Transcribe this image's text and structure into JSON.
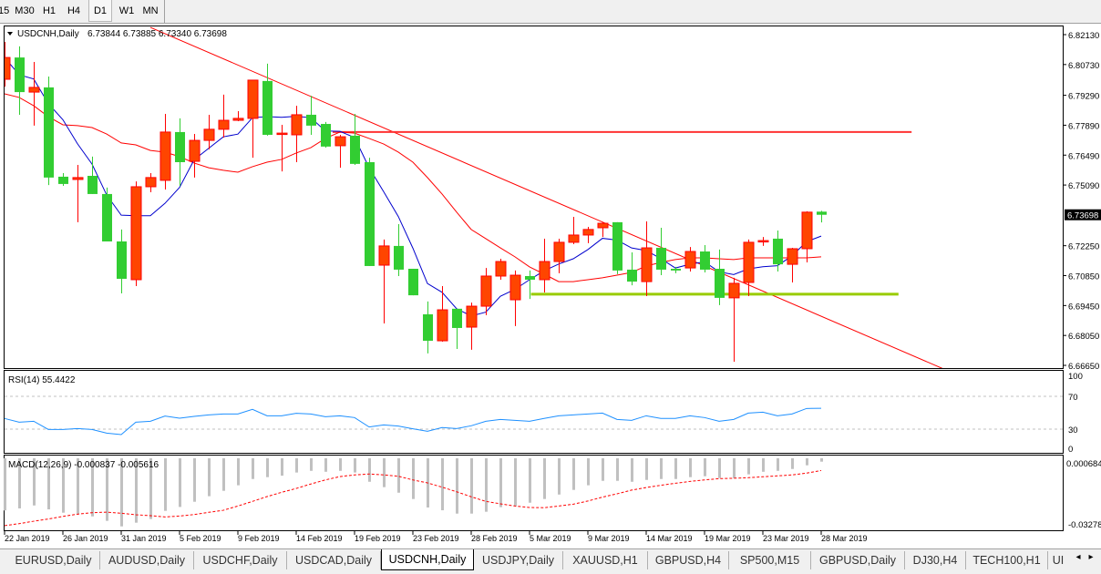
{
  "toolbar": {
    "timeframes": [
      {
        "label": "15",
        "active": false
      },
      {
        "label": "M30",
        "active": false
      },
      {
        "label": "H1",
        "active": false
      },
      {
        "label": "H4",
        "active": false
      },
      {
        "label": "D1",
        "active": true
      },
      {
        "label": "W1",
        "active": false
      },
      {
        "label": "MN",
        "active": false
      }
    ]
  },
  "header": {
    "symbol": "USDCNH,Daily",
    "ohlc": "6.73844 6.73885 6.73340 6.73698"
  },
  "colors": {
    "up_candle": "#ff4500",
    "up_border": "#ff0000",
    "down_candle": "#32cd32",
    "fast_ma": "#0000cd",
    "slow_ma": "#ff0000",
    "trendline": "#ff0000",
    "resistance": "#ff3333",
    "support": "#99cc00",
    "rsi": "#1e90ff",
    "macd_hist": "#c0c0c0",
    "macd_signal": "#ff0000",
    "price_tag_bg": "#000000"
  },
  "chart_data": [
    {
      "type": "candlestick",
      "title": "USDCNH,Daily",
      "price_axis_ticks": [
        "6.82130",
        "6.80730",
        "6.79290",
        "6.77890",
        "6.76490",
        "6.75090",
        "6.72250",
        "6.70850",
        "6.69450",
        "6.68050",
        "6.66650"
      ],
      "current_price": "6.73698",
      "ylim": [
        6.6665,
        6.8213
      ],
      "date_labels": [
        {
          "bar": 0,
          "label": "22 Jan 2019"
        },
        {
          "bar": 4,
          "label": "26 Jan 2019"
        },
        {
          "bar": 8,
          "label": "31 Jan 2019"
        },
        {
          "bar": 12,
          "label": "5 Feb 2019"
        },
        {
          "bar": 16,
          "label": "9 Feb 2019"
        },
        {
          "bar": 20,
          "label": "14 Feb 2019"
        },
        {
          "bar": 24,
          "label": "19 Feb 2019"
        },
        {
          "bar": 28,
          "label": "23 Feb 2019"
        },
        {
          "bar": 32,
          "label": "28 Feb 2019"
        },
        {
          "bar": 36,
          "label": "5 Mar 2019"
        },
        {
          "bar": 40,
          "label": "9 Mar 2019"
        },
        {
          "bar": 44,
          "label": "14 Mar 2019"
        },
        {
          "bar": 48,
          "label": "19 Mar 2019"
        },
        {
          "bar": 52,
          "label": "23 Mar 2019"
        },
        {
          "bar": 56,
          "label": "28 Mar 2019"
        }
      ],
      "ohlc": [
        [
          6.8004,
          6.8179,
          6.797,
          6.8106
        ],
        [
          6.8106,
          6.8158,
          6.7838,
          6.7944
        ],
        [
          6.7944,
          6.8085,
          6.7787,
          6.7966
        ],
        [
          6.7966,
          6.8017,
          6.7509,
          6.7544
        ],
        [
          6.7548,
          6.7565,
          6.7505,
          6.7514
        ],
        [
          6.7535,
          6.7603,
          6.7335,
          6.7544
        ],
        [
          6.7552,
          6.7642,
          6.7467,
          6.7467
        ],
        [
          6.7467,
          6.7497,
          6.7245,
          6.7245
        ],
        [
          6.7245,
          6.7301,
          6.7002,
          6.707
        ],
        [
          6.7066,
          6.7526,
          6.7036,
          6.7501
        ],
        [
          6.7501,
          6.7565,
          6.7475,
          6.7544
        ],
        [
          6.7531,
          6.7842,
          6.7488,
          6.7757
        ],
        [
          6.7757,
          6.7821,
          6.7505,
          6.7616
        ],
        [
          6.762,
          6.7748,
          6.7544,
          6.7718
        ],
        [
          6.7718,
          6.7838,
          6.7676,
          6.777
        ],
        [
          6.777,
          6.7932,
          6.7731,
          6.7812
        ],
        [
          6.7812,
          6.7855,
          6.7808,
          6.7821
        ],
        [
          6.7821,
          6.8,
          6.7637,
          6.8
        ],
        [
          6.7996,
          6.8077,
          6.774,
          6.7744
        ],
        [
          6.7748,
          6.7791,
          6.7573,
          6.7752
        ],
        [
          6.7744,
          6.788,
          6.7616,
          6.7838
        ],
        [
          6.7838,
          6.7927,
          6.7744,
          6.7787
        ],
        [
          6.7795,
          6.7804,
          6.7684,
          6.7689
        ],
        [
          6.7693,
          6.7744,
          6.759,
          6.7735
        ],
        [
          6.774,
          6.7842,
          6.7603,
          6.7608
        ],
        [
          6.7616,
          6.7637,
          6.713,
          6.713
        ],
        [
          6.7134,
          6.7254,
          6.6861,
          6.7224
        ],
        [
          6.7224,
          6.7326,
          6.7083,
          6.7113
        ],
        [
          6.7117,
          6.7117,
          6.6993,
          6.6993
        ],
        [
          6.6904,
          6.6964,
          6.6721,
          6.678
        ],
        [
          6.678,
          6.7036,
          6.6776,
          6.6925
        ],
        [
          6.693,
          6.693,
          6.6742,
          6.684
        ],
        [
          6.6844,
          6.6959,
          6.6738,
          6.6942
        ],
        [
          6.6942,
          6.7121,
          6.69,
          6.7083
        ],
        [
          6.7083,
          6.7164,
          6.7066,
          6.7151
        ],
        [
          6.6972,
          6.7109,
          6.6849,
          6.7087
        ],
        [
          6.7083,
          6.7109,
          6.6976,
          6.7066
        ],
        [
          6.7066,
          6.7258,
          6.7006,
          6.7151
        ],
        [
          6.7151,
          6.7258,
          6.7096,
          6.7241
        ],
        [
          6.7241,
          6.736,
          6.7232,
          6.7275
        ],
        [
          6.7275,
          6.7313,
          6.7237,
          6.7301
        ],
        [
          6.7309,
          6.7335,
          6.7266,
          6.733
        ],
        [
          6.7335,
          6.7335,
          6.7092,
          6.7109
        ],
        [
          6.7113,
          6.7194,
          6.704,
          6.7057
        ],
        [
          6.7057,
          6.7339,
          6.6989,
          6.7215
        ],
        [
          6.7215,
          6.7309,
          6.7087,
          6.7113
        ],
        [
          6.7117,
          6.7126,
          6.7096,
          6.7109
        ],
        [
          6.7121,
          6.7219,
          6.7104,
          6.7198
        ],
        [
          6.7198,
          6.7228,
          6.71,
          6.7113
        ],
        [
          6.7117,
          6.7207,
          6.6947,
          6.6981
        ],
        [
          6.6981,
          6.7075,
          6.6682,
          6.7049
        ],
        [
          6.7053,
          6.7254,
          6.6989,
          6.7241
        ],
        [
          6.7245,
          6.7266,
          6.7224,
          6.7249
        ],
        [
          6.7258,
          6.7296,
          6.7104,
          6.7138
        ],
        [
          6.7138,
          6.7215,
          6.7053,
          6.7211
        ],
        [
          6.7211,
          6.7386,
          6.7147,
          6.7382
        ],
        [
          6.73844,
          6.73885,
          6.7334,
          6.73698
        ]
      ],
      "slow_ma": [
        6.7936,
        6.7919,
        6.788,
        6.7829,
        6.7791,
        6.7787,
        6.7778,
        6.7748,
        6.7706,
        6.7697,
        6.7671,
        6.7663,
        6.7642,
        6.7612,
        6.759,
        6.7578,
        6.7569,
        6.7595,
        6.7616,
        6.7629,
        6.7659,
        6.7684,
        6.7727,
        6.7757,
        6.7752,
        6.7727,
        6.7701,
        6.7663,
        6.7616,
        6.7544,
        6.7467,
        6.7382,
        6.7301,
        6.7258,
        6.7215,
        6.7173,
        6.7126,
        6.7092,
        6.7057,
        6.7057,
        6.7066,
        6.7075,
        6.7087,
        6.71,
        6.713,
        6.7147,
        6.716,
        6.7168,
        6.7168,
        6.7164,
        6.716,
        6.7168,
        6.7168,
        6.7168,
        6.7168,
        6.7168,
        6.7173
      ],
      "trendline": {
        "from": {
          "bar": 10,
          "price": 6.8247
        },
        "to": {
          "bar": 64.4,
          "price": 6.6648
        }
      },
      "resistance": {
        "price": 6.7757,
        "from_bar": 22.5,
        "to_bar": 62.2
      },
      "support": {
        "price": 6.6998,
        "from_bar": 36.1,
        "to_bar": 61.3
      }
    },
    {
      "type": "line",
      "title": "RSI(14) 55.4422",
      "ylim": [
        0,
        100
      ],
      "ticks": [
        "100",
        "70",
        "30",
        "0"
      ],
      "levels": [
        70,
        30
      ],
      "values": [
        43,
        38.5,
        39.6,
        29.6,
        29.6,
        30.7,
        29.6,
        25.2,
        23.3,
        38.5,
        39.6,
        45.9,
        43.3,
        45.6,
        47.4,
        48.5,
        48.5,
        54.1,
        46.3,
        46.3,
        49.3,
        48.5,
        45.2,
        46.3,
        44.1,
        32.6,
        35.2,
        33.7,
        30.4,
        27.4,
        31.9,
        30.7,
        34.1,
        39.6,
        41.8,
        40.7,
        39.6,
        43,
        46.3,
        47.4,
        48.5,
        49.6,
        41.8,
        40.7,
        46.3,
        43,
        43,
        46.3,
        44.1,
        39.6,
        41.8,
        49.6,
        50.7,
        46.3,
        48.5,
        55.2,
        55.44
      ]
    },
    {
      "type": "bar",
      "title": "MACD(12,26,9) -0.000837 -0.005616",
      "ticks": [
        "0.000684",
        "-0.03278"
      ],
      "histogram": [
        -0.0272,
        -0.0261,
        -0.0245,
        -0.0266,
        -0.0284,
        -0.029,
        -0.0304,
        -0.0328,
        -0.0358,
        -0.0338,
        -0.0318,
        -0.0274,
        -0.0253,
        -0.0225,
        -0.0195,
        -0.0166,
        -0.0136,
        -0.0102,
        -0.0092,
        -0.0084,
        -0.0067,
        -0.0058,
        -0.0063,
        -0.0058,
        -0.0067,
        -0.0117,
        -0.0146,
        -0.0176,
        -0.021,
        -0.0256,
        -0.0271,
        -0.0289,
        -0.0289,
        -0.0279,
        -0.0254,
        -0.0248,
        -0.023,
        -0.021,
        -0.0186,
        -0.0161,
        -0.0136,
        -0.0112,
        -0.0112,
        -0.0117,
        -0.0107,
        -0.0102,
        -0.0102,
        -0.0092,
        -0.0087,
        -0.0097,
        -0.0097,
        -0.0077,
        -0.0063,
        -0.0058,
        -0.0048,
        -0.0028,
        -0.000837
      ],
      "signal": [
        -0.0354,
        -0.0343,
        -0.033,
        -0.0318,
        -0.0304,
        -0.0292,
        -0.0284,
        -0.0281,
        -0.0287,
        -0.0295,
        -0.03,
        -0.0307,
        -0.0302,
        -0.0294,
        -0.0282,
        -0.0271,
        -0.0248,
        -0.0223,
        -0.0197,
        -0.0174,
        -0.0153,
        -0.0129,
        -0.0107,
        -0.0089,
        -0.008,
        -0.0075,
        -0.008,
        -0.0087,
        -0.0107,
        -0.0123,
        -0.0146,
        -0.0171,
        -0.0198,
        -0.0223,
        -0.0236,
        -0.0248,
        -0.0256,
        -0.0257,
        -0.0248,
        -0.0238,
        -0.0221,
        -0.02,
        -0.0182,
        -0.0162,
        -0.0148,
        -0.0136,
        -0.0125,
        -0.0115,
        -0.0107,
        -0.01,
        -0.0098,
        -0.0095,
        -0.009,
        -0.0085,
        -0.008,
        -0.007,
        -0.005616
      ]
    }
  ],
  "tabs": [
    {
      "label": "EURUSD,Daily",
      "active": false
    },
    {
      "label": "AUDUSD,Daily",
      "active": false
    },
    {
      "label": "USDCHF,Daily",
      "active": false
    },
    {
      "label": "USDCAD,Daily",
      "active": false
    },
    {
      "label": "USDCNH,Daily",
      "active": true
    },
    {
      "label": "USDJPY,Daily",
      "active": false
    },
    {
      "label": "XAUUSD,H1",
      "active": false
    },
    {
      "label": "GBPUSD,H4",
      "active": false
    },
    {
      "label": "SP500,M15",
      "active": false
    },
    {
      "label": "GBPUSD,Daily",
      "active": false
    },
    {
      "label": "DJ30,H4",
      "active": false
    },
    {
      "label": "TECH100,H1",
      "active": false
    },
    {
      "label": "UI",
      "active": false
    }
  ],
  "tab_scroll": {
    "left_icon": "arrow-left",
    "right_icon": "arrow-right",
    "left": "◂",
    "right": "▸"
  }
}
